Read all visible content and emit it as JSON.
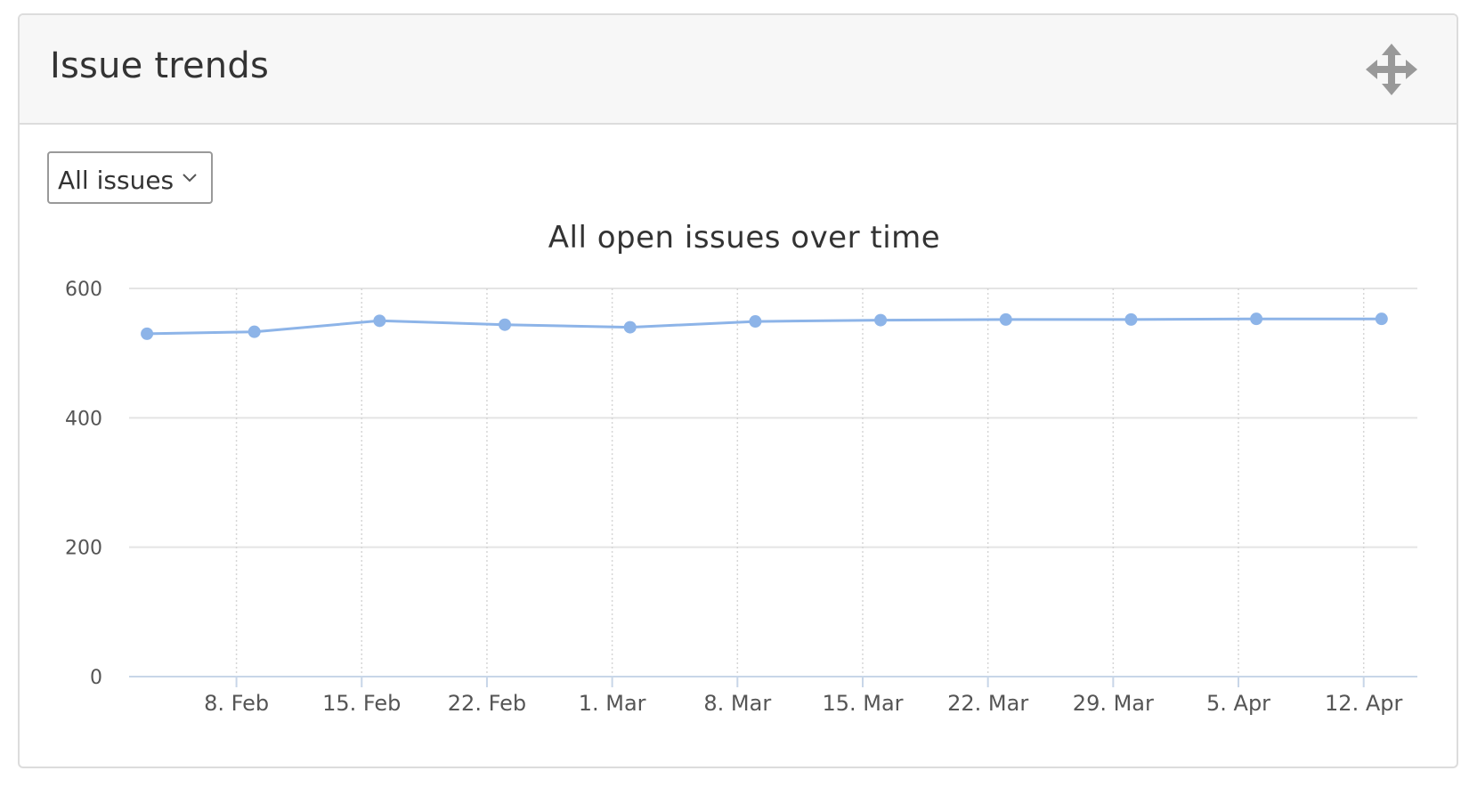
{
  "widget": {
    "title": "Issue trends"
  },
  "filter": {
    "selected": "All issues"
  },
  "icons": {
    "move": "move-icon",
    "dropdown": "chevron-down-icon"
  },
  "colors": {
    "series": "#8db4e8",
    "grid": "#e4e4e4",
    "axis": "#c8d6e8",
    "text": "#333333",
    "tick_text": "#555555"
  },
  "chart_data": {
    "type": "line",
    "title": "All open issues over time",
    "xlabel": "",
    "ylabel": "",
    "ylim": [
      0,
      600
    ],
    "y_ticks": [
      0,
      200,
      400,
      600
    ],
    "x_range": [
      "2021-02-02",
      "2021-04-15"
    ],
    "x_ticks": [
      {
        "date": "2021-02-08",
        "label": "8. Feb"
      },
      {
        "date": "2021-02-15",
        "label": "15. Feb"
      },
      {
        "date": "2021-02-22",
        "label": "22. Feb"
      },
      {
        "date": "2021-03-01",
        "label": "1. Mar"
      },
      {
        "date": "2021-03-08",
        "label": "8. Mar"
      },
      {
        "date": "2021-03-15",
        "label": "15. Mar"
      },
      {
        "date": "2021-03-22",
        "label": "22. Mar"
      },
      {
        "date": "2021-03-29",
        "label": "29. Mar"
      },
      {
        "date": "2021-04-05",
        "label": "5. Apr"
      },
      {
        "date": "2021-04-12",
        "label": "12. Apr"
      }
    ],
    "grid": true,
    "legend": "none",
    "series": [
      {
        "values": [
          {
            "x": "2021-02-03",
            "y": 530
          },
          {
            "x": "2021-02-09",
            "y": 533
          },
          {
            "x": "2021-02-16",
            "y": 550
          },
          {
            "x": "2021-02-23",
            "y": 544
          },
          {
            "x": "2021-03-02",
            "y": 540
          },
          {
            "x": "2021-03-09",
            "y": 549
          },
          {
            "x": "2021-03-16",
            "y": 551
          },
          {
            "x": "2021-03-23",
            "y": 552
          },
          {
            "x": "2021-03-30",
            "y": 552
          },
          {
            "x": "2021-04-06",
            "y": 553
          },
          {
            "x": "2021-04-13",
            "y": 553
          }
        ]
      }
    ]
  }
}
